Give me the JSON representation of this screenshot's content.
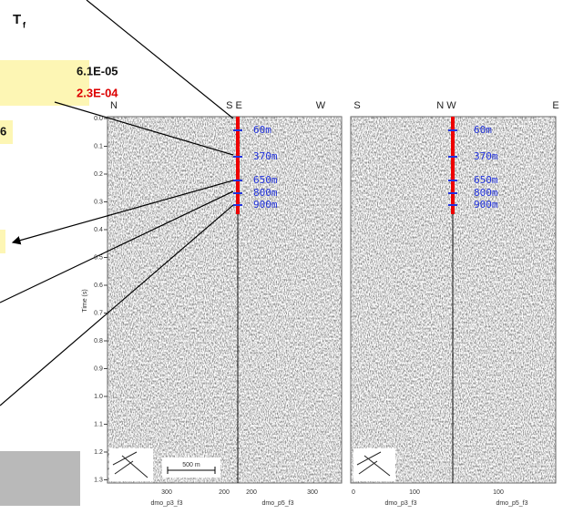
{
  "title": {
    "main": "T",
    "sub": "f"
  },
  "values": [
    "6.1E-05",
    "2.3E-04",
    "6"
  ],
  "time_axis": {
    "label": "Time (s)",
    "ticks": [
      "0.0",
      "0.1",
      "0.2",
      "0.3",
      "0.4",
      "0.5",
      "0.6",
      "0.7",
      "0.8",
      "0.9",
      "1.0",
      "1.1",
      "1.2",
      "1.3"
    ]
  },
  "depths": [
    "60m",
    "370m",
    "650m",
    "800m",
    "900m"
  ],
  "sections": [
    {
      "headers": [
        "N",
        "S E",
        "W"
      ],
      "x_labels": [
        "300",
        "200",
        "200",
        "300"
      ],
      "names": [
        "dmo_p3_f3",
        "dmo_p5_f3"
      ],
      "scale": "500 m"
    },
    {
      "headers": [
        "S",
        "N W",
        "E"
      ],
      "x_labels": [
        "0",
        "100",
        "100"
      ],
      "names": [
        "dmo_p3_f3",
        "dmo_p5_f3"
      ]
    }
  ]
}
